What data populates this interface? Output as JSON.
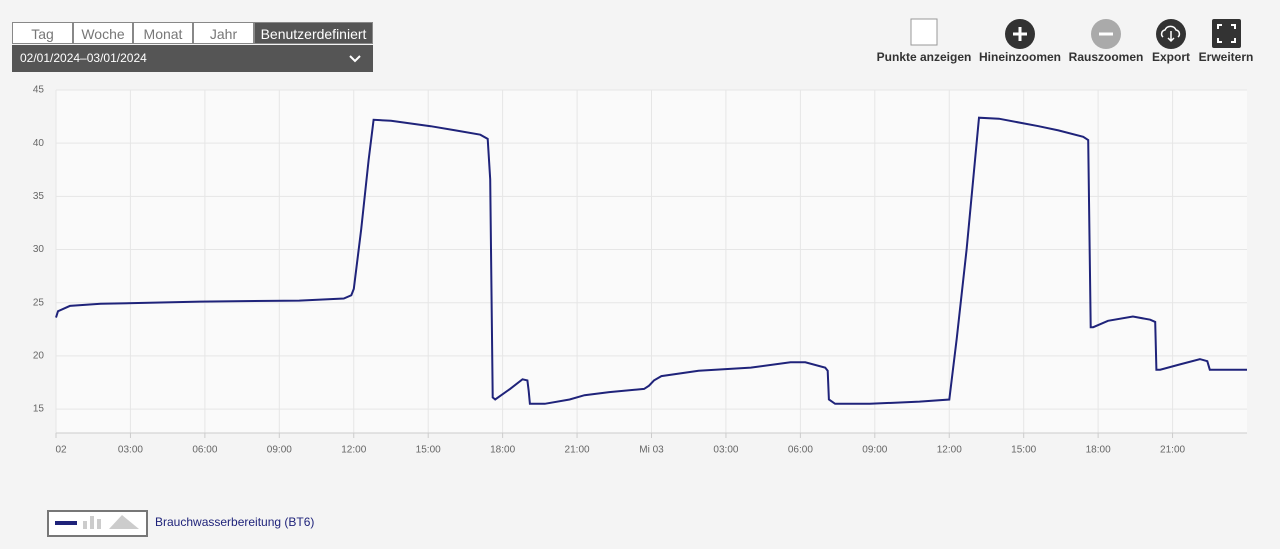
{
  "tabs": [
    "Tag",
    "Woche",
    "Monat",
    "Jahr",
    "Benutzerdefiniert"
  ],
  "active_tab": 4,
  "date_range": "02/01/2024–03/01/2024",
  "toolbar": [
    "Punkte anzeigen",
    "Hineinzoomen",
    "Rauszoomen",
    "Export",
    "Erweitern"
  ],
  "chart_data": {
    "type": "line",
    "x": [
      0,
      0.08,
      0.56,
      1.8,
      5.8,
      9.8,
      11.6,
      11.9,
      12.0,
      12.3,
      12.6,
      12.8,
      13.5,
      15.1,
      16.1,
      17.1,
      17.4,
      17.5,
      17.6,
      17.7,
      18.3,
      18.8,
      19.0,
      19.05,
      19.1,
      19.7,
      20.7,
      21.3,
      22.3,
      23.7,
      23.9,
      24.1,
      24.4,
      25.9,
      28.0,
      29.6,
      30.2,
      31.0,
      31.1,
      31.15,
      31.4,
      32.8,
      34.8,
      36.0,
      36.3,
      36.7,
      37.2,
      38.0,
      39.6,
      40.4,
      41.4,
      41.6,
      41.7,
      41.8,
      42.4,
      43.4,
      44.1,
      44.3,
      44.35,
      44.5,
      45.3,
      46.1,
      46.4,
      46.5,
      48.0
    ],
    "series": [
      {
        "name": "Brauchwasserbereitung (BT6)",
        "color": "#1f237a",
        "values": [
          23.6,
          24.2,
          24.7,
          24.9,
          25.1,
          25.2,
          25.4,
          25.7,
          26.3,
          31.9,
          38.4,
          42.2,
          42.1,
          41.6,
          41.2,
          40.8,
          40.4,
          36.6,
          16.1,
          15.9,
          16.9,
          17.8,
          17.7,
          16.7,
          15.5,
          15.5,
          15.9,
          16.3,
          16.6,
          16.9,
          17.2,
          17.7,
          18.1,
          18.6,
          18.9,
          19.4,
          19.4,
          18.9,
          18.6,
          15.9,
          15.5,
          15.5,
          15.7,
          15.9,
          21.6,
          30.0,
          42.4,
          42.3,
          41.6,
          41.2,
          40.6,
          40.3,
          22.7,
          22.7,
          23.3,
          23.7,
          23.4,
          23.2,
          18.7,
          18.7,
          19.2,
          19.7,
          19.5,
          18.7,
          18.7
        ]
      }
    ],
    "xlim": [
      0,
      48
    ],
    "xticks": [
      {
        "value": 0,
        "label": "02"
      },
      {
        "value": 3,
        "label": "03:00"
      },
      {
        "value": 6,
        "label": "06:00"
      },
      {
        "value": 9,
        "label": "09:00"
      },
      {
        "value": 12,
        "label": "12:00"
      },
      {
        "value": 15,
        "label": "15:00"
      },
      {
        "value": 18,
        "label": "18:00"
      },
      {
        "value": 21,
        "label": "21:00"
      },
      {
        "value": 24,
        "label": "Mi 03"
      },
      {
        "value": 27,
        "label": "03:00"
      },
      {
        "value": 30,
        "label": "06:00"
      },
      {
        "value": 33,
        "label": "09:00"
      },
      {
        "value": 36,
        "label": "12:00"
      },
      {
        "value": 39,
        "label": "15:00"
      },
      {
        "value": 42,
        "label": "18:00"
      },
      {
        "value": 45,
        "label": "21:00"
      }
    ],
    "ylim": [
      12.75,
      45
    ],
    "yticks": [
      15,
      20,
      25,
      30,
      35,
      40,
      45
    ],
    "grid": true
  }
}
